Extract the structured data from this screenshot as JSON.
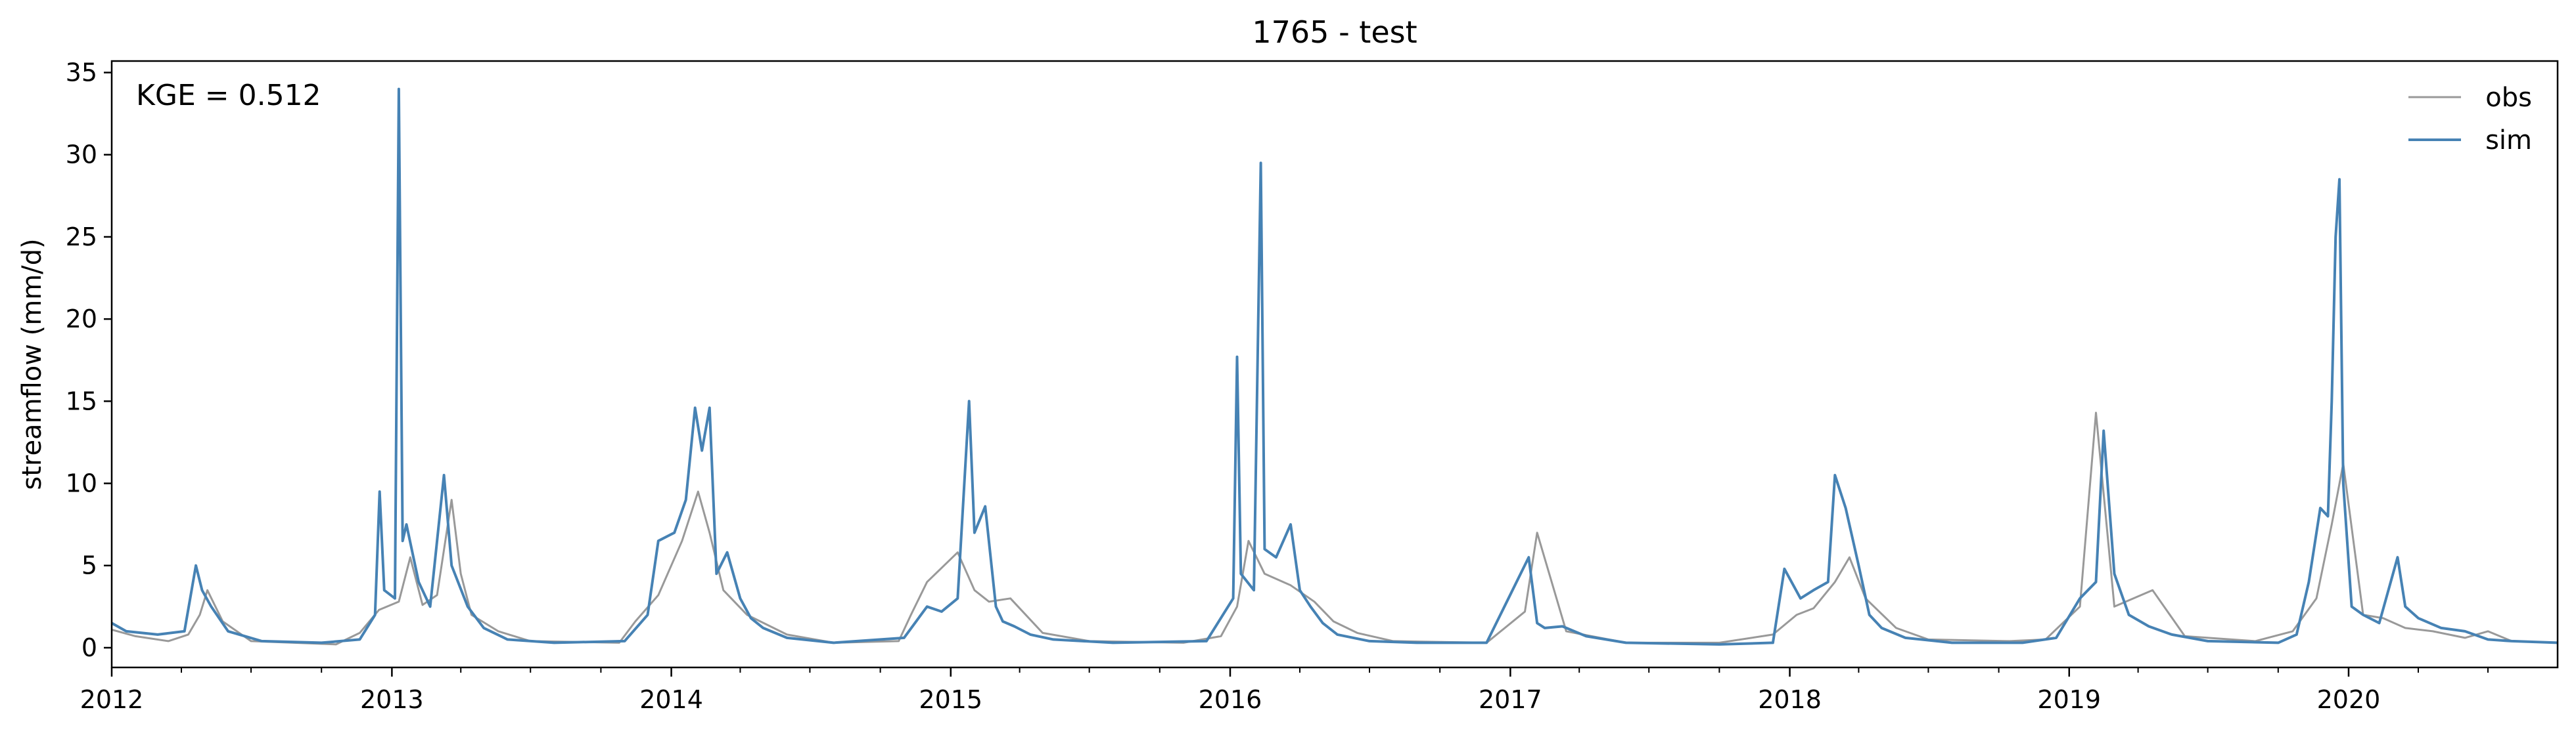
{
  "chart_data": {
    "type": "line",
    "title": "1765 - test",
    "xlabel": "",
    "ylabel": "streamflow (mm/d)",
    "annotation": "KGE = 0.512",
    "x_range": [
      "2012-01-01",
      "2020-09-30"
    ],
    "ylim": [
      -1.2,
      35.7
    ],
    "yticks": [
      0,
      5,
      10,
      15,
      20,
      25,
      30,
      35
    ],
    "xticks": [
      "2012",
      "2013",
      "2014",
      "2015",
      "2016",
      "2017",
      "2018",
      "2019",
      "2020"
    ],
    "grid": false,
    "legend_position": "top-right",
    "series": [
      {
        "name": "obs",
        "color": "#999999",
        "x": [
          "2012-01-01",
          "2012-02-01",
          "2012-03-15",
          "2012-04-10",
          "2012-04-25",
          "2012-05-05",
          "2012-05-25",
          "2012-07-01",
          "2012-10-20",
          "2012-11-20",
          "2012-12-15",
          "2013-01-10",
          "2013-01-25",
          "2013-02-10",
          "2013-03-01",
          "2013-03-20",
          "2013-04-01",
          "2013-04-15",
          "2013-05-20",
          "2013-07-01",
          "2013-10-25",
          "2013-11-15",
          "2013-12-15",
          "2014-01-15",
          "2014-02-05",
          "2014-02-20",
          "2014-03-10",
          "2014-04-10",
          "2014-06-01",
          "2014-08-01",
          "2014-10-25",
          "2014-11-10",
          "2014-12-01",
          "2015-01-10",
          "2015-02-01",
          "2015-02-20",
          "2015-03-20",
          "2015-05-01",
          "2015-07-01",
          "2015-11-01",
          "2015-12-20",
          "2016-01-10",
          "2016-01-25",
          "2016-02-15",
          "2016-03-20",
          "2016-04-20",
          "2016-05-15",
          "2016-06-15",
          "2016-08-01",
          "2016-12-01",
          "2017-01-20",
          "2017-02-05",
          "2017-03-15",
          "2017-06-01",
          "2017-10-01",
          "2017-12-10",
          "2018-01-10",
          "2018-02-01",
          "2018-03-01",
          "2018-03-20",
          "2018-04-10",
          "2018-05-20",
          "2018-07-01",
          "2018-10-15",
          "2018-12-01",
          "2019-01-15",
          "2019-02-05",
          "2019-03-01",
          "2019-04-20",
          "2019-06-01",
          "2019-09-01",
          "2019-10-20",
          "2019-11-20",
          "2019-12-10",
          "2019-12-25",
          "2020-01-20",
          "2020-02-15",
          "2020-03-15",
          "2020-04-20",
          "2020-06-01",
          "2020-07-01",
          "2020-08-01",
          "2020-09-30"
        ],
        "values": [
          1.1,
          0.7,
          0.4,
          0.8,
          2.0,
          3.5,
          1.6,
          0.4,
          0.2,
          0.9,
          2.3,
          2.8,
          5.5,
          2.6,
          3.2,
          9.0,
          4.5,
          2.0,
          1.0,
          0.4,
          0.3,
          1.6,
          3.2,
          6.5,
          9.5,
          7.0,
          3.5,
          2.0,
          0.8,
          0.3,
          0.4,
          2.0,
          4.0,
          5.8,
          3.5,
          2.8,
          3.0,
          0.9,
          0.4,
          0.3,
          0.7,
          2.5,
          6.5,
          4.5,
          3.8,
          2.8,
          1.6,
          0.9,
          0.4,
          0.3,
          2.2,
          7.0,
          1.0,
          0.3,
          0.3,
          0.8,
          2.0,
          2.4,
          4.0,
          5.5,
          3.0,
          1.2,
          0.5,
          0.4,
          0.5,
          2.5,
          14.3,
          2.5,
          3.5,
          0.7,
          0.4,
          1.0,
          3.0,
          7.5,
          11.2,
          2.0,
          1.8,
          1.2,
          1.0,
          0.6,
          1.0,
          0.4,
          0.3
        ]
      },
      {
        "name": "sim",
        "color": "#4682b4",
        "x": [
          "2012-01-01",
          "2012-01-20",
          "2012-03-01",
          "2012-04-05",
          "2012-04-20",
          "2012-04-28",
          "2012-05-10",
          "2012-06-01",
          "2012-07-15",
          "2012-10-01",
          "2012-11-20",
          "2012-12-10",
          "2012-12-16",
          "2012-12-22",
          "2013-01-05",
          "2013-01-10",
          "2013-01-15",
          "2013-01-20",
          "2013-02-05",
          "2013-02-20",
          "2013-03-10",
          "2013-03-20",
          "2013-04-10",
          "2013-05-01",
          "2013-06-01",
          "2013-08-01",
          "2013-11-01",
          "2013-12-01",
          "2013-12-15",
          "2014-01-05",
          "2014-01-20",
          "2014-02-01",
          "2014-02-10",
          "2014-02-20",
          "2014-03-01",
          "2014-03-15",
          "2014-04-01",
          "2014-04-15",
          "2014-05-01",
          "2014-06-01",
          "2014-08-01",
          "2014-11-01",
          "2014-12-01",
          "2014-12-20",
          "2015-01-10",
          "2015-01-25",
          "2015-02-01",
          "2015-02-15",
          "2015-03-01",
          "2015-03-10",
          "2015-03-25",
          "2015-04-15",
          "2015-05-15",
          "2015-08-01",
          "2015-12-01",
          "2016-01-05",
          "2016-01-10",
          "2016-01-15",
          "2016-02-01",
          "2016-02-10",
          "2016-02-15",
          "2016-03-01",
          "2016-03-20",
          "2016-04-01",
          "2016-04-15",
          "2016-05-01",
          "2016-05-20",
          "2016-07-01",
          "2016-09-01",
          "2016-12-01",
          "2017-01-25",
          "2017-02-05",
          "2017-02-15",
          "2017-03-10",
          "2017-04-10",
          "2017-06-01",
          "2017-10-01",
          "2017-12-10",
          "2017-12-25",
          "2018-01-15",
          "2018-02-01",
          "2018-02-20",
          "2018-03-01",
          "2018-03-15",
          "2018-04-01",
          "2018-04-15",
          "2018-05-01",
          "2018-06-01",
          "2018-08-01",
          "2018-11-01",
          "2018-12-15",
          "2019-01-15",
          "2019-02-05",
          "2019-02-15",
          "2019-03-01",
          "2019-03-20",
          "2019-04-15",
          "2019-05-15",
          "2019-07-01",
          "2019-10-01",
          "2019-10-25",
          "2019-11-10",
          "2019-11-25",
          "2019-12-05",
          "2019-12-10",
          "2019-12-15",
          "2019-12-20",
          "2019-12-25",
          "2020-01-05",
          "2020-01-20",
          "2020-02-10",
          "2020-03-05",
          "2020-03-15",
          "2020-04-01",
          "2020-05-01",
          "2020-06-01",
          "2020-07-01",
          "2020-08-01",
          "2020-09-30"
        ],
        "values": [
          1.5,
          1.0,
          0.8,
          1.0,
          5.0,
          3.5,
          2.5,
          1.0,
          0.4,
          0.3,
          0.5,
          2.0,
          9.5,
          3.5,
          3.0,
          34.0,
          6.5,
          7.5,
          4.0,
          2.5,
          10.5,
          5.0,
          2.5,
          1.2,
          0.5,
          0.3,
          0.4,
          2.0,
          6.5,
          7.0,
          9.0,
          14.6,
          12.0,
          14.6,
          4.5,
          5.8,
          3.0,
          1.8,
          1.2,
          0.6,
          0.3,
          0.6,
          2.5,
          2.2,
          3.0,
          15.0,
          7.0,
          8.6,
          2.5,
          1.6,
          1.3,
          0.8,
          0.5,
          0.3,
          0.4,
          3.0,
          17.7,
          4.5,
          3.5,
          29.5,
          6.0,
          5.5,
          7.5,
          3.5,
          2.5,
          1.5,
          0.8,
          0.4,
          0.3,
          0.3,
          5.5,
          1.5,
          1.2,
          1.3,
          0.7,
          0.3,
          0.2,
          0.3,
          4.8,
          3.0,
          3.5,
          4.0,
          10.5,
          8.5,
          5.0,
          2.0,
          1.2,
          0.6,
          0.3,
          0.3,
          0.6,
          3.0,
          4.0,
          13.2,
          4.5,
          2.0,
          1.3,
          0.8,
          0.4,
          0.3,
          0.8,
          4.0,
          8.5,
          8.0,
          15.0,
          25.0,
          28.5,
          10.0,
          2.5,
          2.0,
          1.5,
          5.5,
          2.5,
          1.8,
          1.2,
          1.0,
          0.5,
          0.4,
          0.3
        ]
      }
    ]
  }
}
